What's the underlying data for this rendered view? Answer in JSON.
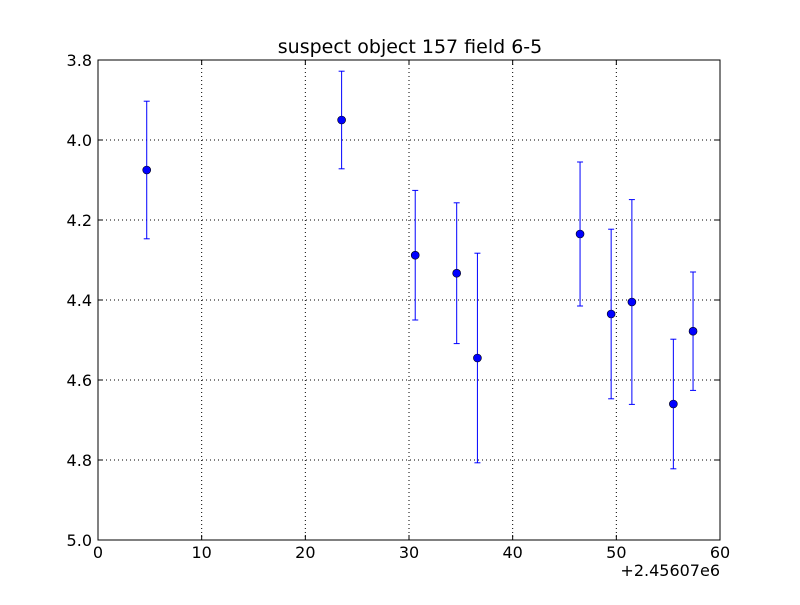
{
  "chart_data": {
    "type": "scatter",
    "title": "suspect object 157 field 6-5",
    "xlabel": "",
    "ylabel": "",
    "x_offset_label": "+2.45607e6",
    "xlim": [
      0,
      60
    ],
    "ylim": [
      5.0,
      3.8
    ],
    "y_inverted": true,
    "grid": true,
    "x_ticks": [
      0,
      10,
      20,
      30,
      40,
      50,
      60
    ],
    "x_tick_labels": [
      "0",
      "10",
      "20",
      "30",
      "40",
      "50",
      "60"
    ],
    "y_ticks": [
      3.8,
      4.0,
      4.2,
      4.4,
      4.6,
      4.8,
      5.0
    ],
    "y_tick_labels": [
      "3.8",
      "4.0",
      "4.2",
      "4.4",
      "4.6",
      "4.8",
      "5.0"
    ],
    "color": "#0000ff",
    "points": [
      {
        "x": 4.7,
        "y": 4.075,
        "err": 0.172
      },
      {
        "x": 23.5,
        "y": 3.95,
        "err": 0.122
      },
      {
        "x": 30.6,
        "y": 4.288,
        "err": 0.162
      },
      {
        "x": 34.6,
        "y": 4.333,
        "err": 0.176
      },
      {
        "x": 36.6,
        "y": 4.545,
        "err": 0.262
      },
      {
        "x": 46.5,
        "y": 4.235,
        "err": 0.18
      },
      {
        "x": 49.5,
        "y": 4.435,
        "err": 0.212
      },
      {
        "x": 51.5,
        "y": 4.405,
        "err": 0.256
      },
      {
        "x": 55.5,
        "y": 4.66,
        "err": 0.162
      },
      {
        "x": 57.4,
        "y": 4.478,
        "err": 0.148
      }
    ]
  }
}
